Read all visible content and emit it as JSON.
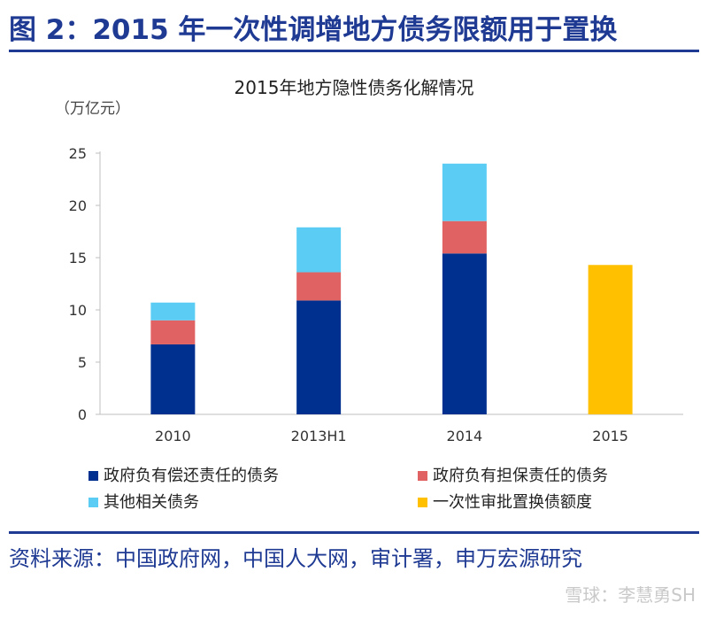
{
  "figure_title": "图 2：2015 年一次性调增地方债务限额用于置换",
  "source": "资料来源：中国政府网，中国人大网，审计署，申万宏源研究",
  "watermark": "雪球：李慧勇SH",
  "chart_data": {
    "type": "bar",
    "stacked": true,
    "title": "2015年地方隐性债务化解情况",
    "unit_label": "（万亿元）",
    "categories": [
      "2010",
      "2013H1",
      "2014",
      "2015"
    ],
    "ylim": [
      0,
      25
    ],
    "yticks": [
      0,
      5,
      10,
      15,
      20,
      25
    ],
    "grid": false,
    "legend_position": "bottom",
    "series": [
      {
        "name": "政府负有偿还责任的债务",
        "color": "#00308f",
        "values": [
          6.7,
          10.9,
          15.4,
          null
        ]
      },
      {
        "name": "政府负有担保责任的债务",
        "color": "#e06262",
        "values": [
          2.3,
          2.7,
          3.1,
          null
        ]
      },
      {
        "name": "其他相关债务",
        "color": "#5bcdf4",
        "values": [
          1.7,
          4.3,
          5.5,
          null
        ]
      },
      {
        "name": "一次性审批置换债额度",
        "color": "#ffc000",
        "values": [
          null,
          null,
          null,
          14.3
        ]
      }
    ]
  }
}
